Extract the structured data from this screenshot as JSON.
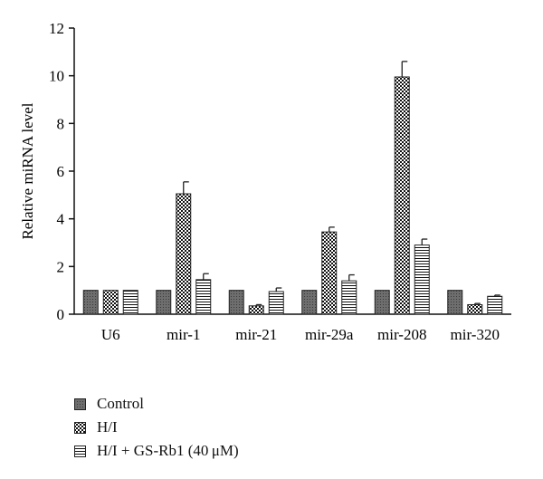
{
  "chart_data": {
    "type": "bar",
    "title": "",
    "xlabel": "",
    "ylabel": "Relative miRNA level",
    "ylim": [
      0,
      12
    ],
    "yticks": [
      0,
      2,
      4,
      6,
      8,
      10,
      12
    ],
    "grid": false,
    "legend_position": "bottom-left",
    "categories": [
      "U6",
      "mir-1",
      "mir-21",
      "mir-29a",
      "mir-208",
      "mir-320"
    ],
    "series": [
      {
        "name": "Control",
        "pattern": "solid-dark",
        "values": [
          1.0,
          1.0,
          1.0,
          1.0,
          1.0,
          1.0
        ],
        "errors": [
          0,
          0,
          0,
          0,
          0,
          0
        ]
      },
      {
        "name": "H/I",
        "pattern": "checker",
        "values": [
          1.0,
          5.05,
          0.35,
          3.45,
          9.95,
          0.4
        ],
        "errors": [
          0,
          0.5,
          0.05,
          0.2,
          0.65,
          0.05
        ]
      },
      {
        "name": "H/I + GS-Rb1 (40 μM)",
        "pattern": "horizontal-lines",
        "values": [
          1.0,
          1.45,
          0.95,
          1.4,
          2.9,
          0.75
        ],
        "errors": [
          0,
          0.25,
          0.15,
          0.25,
          0.25,
          0.05
        ]
      }
    ]
  },
  "colors": {
    "axis": "#111111",
    "bar_fill": "#ffffff",
    "bar_stroke": "#222222"
  }
}
